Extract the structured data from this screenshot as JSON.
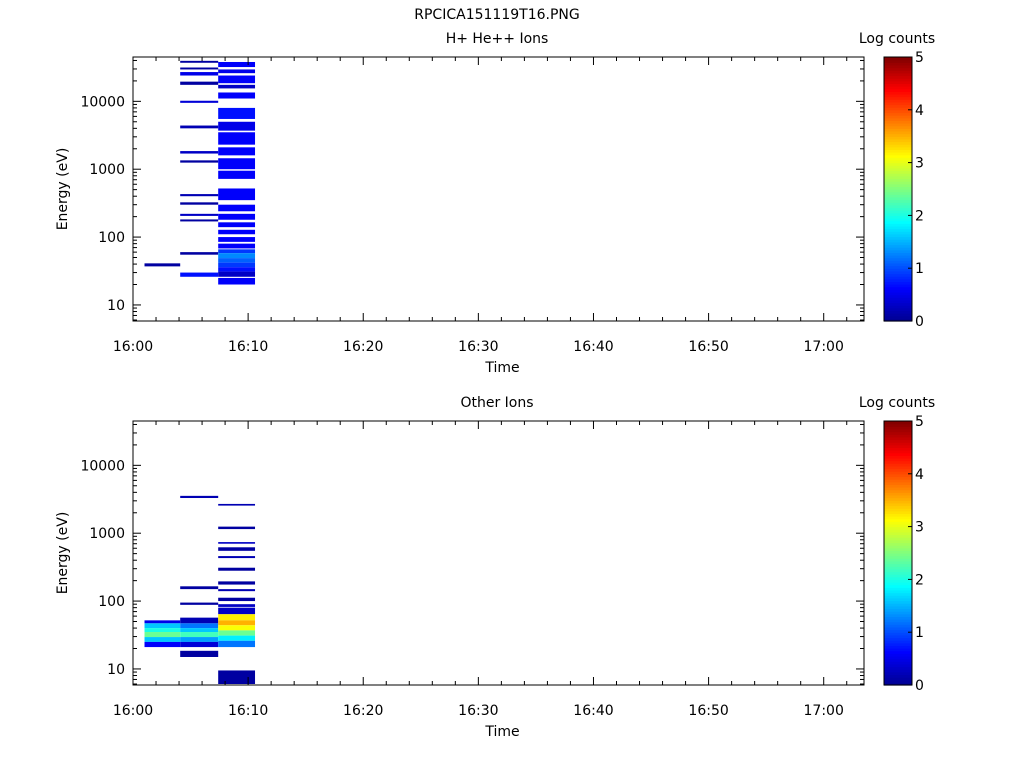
{
  "figure": {
    "title": "RPCICA151119T16.PNG"
  },
  "colormap": [
    "#00008f",
    "#0000ff",
    "#007fff",
    "#00ffff",
    "#7fff7f",
    "#ffff00",
    "#ff7f00",
    "#ff0000",
    "#7f0000"
  ],
  "chart_data": [
    {
      "type": "heatmap",
      "title": "H+ He++ Ions",
      "xlabel": "Time",
      "ylabel": "Energy (eV)",
      "x_ticks": [
        "16:00",
        "16:10",
        "16:20",
        "16:30",
        "16:40",
        "16:50",
        "17:00"
      ],
      "x_range_min": [
        0,
        63.5
      ],
      "y_scale": "log",
      "y_ticks": [
        "10",
        "100",
        "1000",
        "10000"
      ],
      "y_range": [
        5.8,
        45000
      ],
      "colorbar": {
        "label": "Log counts",
        "range": [
          0,
          5
        ],
        "ticks": [
          "0",
          "1",
          "2",
          "3",
          "4",
          "5"
        ]
      },
      "cells": [
        {
          "t": [
            1.0,
            4.1
          ],
          "e": [
            37,
            41
          ],
          "v": 0.1
        },
        {
          "t": [
            4.1,
            7.4
          ],
          "e": [
            37000,
            39500
          ],
          "v": 0.1
        },
        {
          "t": [
            4.1,
            7.4
          ],
          "e": [
            29500,
            31500
          ],
          "v": 0.1
        },
        {
          "t": [
            4.1,
            7.4
          ],
          "e": [
            24000,
            27000
          ],
          "v": 0.5
        },
        {
          "t": [
            4.1,
            7.4
          ],
          "e": [
            17500,
            19500
          ],
          "v": 0.1
        },
        {
          "t": [
            4.1,
            7.4
          ],
          "e": [
            9500,
            10200
          ],
          "v": 0.4
        },
        {
          "t": [
            4.1,
            7.4
          ],
          "e": [
            4000,
            4400
          ],
          "v": 0.2
        },
        {
          "t": [
            4.1,
            7.4
          ],
          "e": [
            1700,
            1850
          ],
          "v": 0.3
        },
        {
          "t": [
            4.1,
            7.4
          ],
          "e": [
            1250,
            1350
          ],
          "v": 0.1
        },
        {
          "t": [
            4.1,
            7.4
          ],
          "e": [
            400,
            430
          ],
          "v": 0.2
        },
        {
          "t": [
            4.1,
            7.4
          ],
          "e": [
            300,
            325
          ],
          "v": 0.1
        },
        {
          "t": [
            4.1,
            7.4
          ],
          "e": [
            205,
            220
          ],
          "v": 0.3
        },
        {
          "t": [
            4.1,
            7.4
          ],
          "e": [
            170,
            182
          ],
          "v": 0.1
        },
        {
          "t": [
            4.1,
            7.4
          ],
          "e": [
            55,
            60
          ],
          "v": 0.1
        },
        {
          "t": [
            4.1,
            7.4
          ],
          "e": [
            26,
            30
          ],
          "v": 0.7
        },
        {
          "t": [
            7.4,
            10.6
          ],
          "e": [
            32000,
            38000
          ],
          "v": 0.6
        },
        {
          "t": [
            7.4,
            10.6
          ],
          "e": [
            26000,
            29500
          ],
          "v": 0.5
        },
        {
          "t": [
            7.4,
            10.6
          ],
          "e": [
            18500,
            24000
          ],
          "v": 0.6
        },
        {
          "t": [
            7.4,
            10.6
          ],
          "e": [
            15500,
            17500
          ],
          "v": 0.3
        },
        {
          "t": [
            7.4,
            10.6
          ],
          "e": [
            11000,
            13500
          ],
          "v": 0.6
        },
        {
          "t": [
            7.4,
            10.6
          ],
          "e": [
            5500,
            8000
          ],
          "v": 0.7
        },
        {
          "t": [
            7.4,
            10.6
          ],
          "e": [
            3700,
            5000
          ],
          "v": 0.5
        },
        {
          "t": [
            7.4,
            10.6
          ],
          "e": [
            2300,
            3500
          ],
          "v": 0.6
        },
        {
          "t": [
            7.4,
            10.6
          ],
          "e": [
            1600,
            2100
          ],
          "v": 0.6
        },
        {
          "t": [
            7.4,
            10.6
          ],
          "e": [
            1000,
            1450
          ],
          "v": 0.6
        },
        {
          "t": [
            7.4,
            10.6
          ],
          "e": [
            720,
            950
          ],
          "v": 0.6
        },
        {
          "t": [
            7.4,
            10.6
          ],
          "e": [
            350,
            520
          ],
          "v": 0.6
        },
        {
          "t": [
            7.4,
            10.6
          ],
          "e": [
            240,
            300
          ],
          "v": 0.6
        },
        {
          "t": [
            7.4,
            10.6
          ],
          "e": [
            180,
            220
          ],
          "v": 0.6
        },
        {
          "t": [
            7.4,
            10.6
          ],
          "e": [
            140,
            165
          ],
          "v": 0.6
        },
        {
          "t": [
            7.4,
            10.6
          ],
          "e": [
            110,
            128
          ],
          "v": 0.6
        },
        {
          "t": [
            7.4,
            10.6
          ],
          "e": [
            85,
            100
          ],
          "v": 0.6
        },
        {
          "t": [
            7.4,
            10.6
          ],
          "e": [
            68,
            80
          ],
          "v": 0.6
        },
        {
          "t": [
            7.4,
            10.6
          ],
          "e": [
            58,
            66
          ],
          "v": 0.9
        },
        {
          "t": [
            7.4,
            10.6
          ],
          "e": [
            49,
            58
          ],
          "v": 1.3
        },
        {
          "t": [
            7.4,
            10.6
          ],
          "e": [
            42,
            49
          ],
          "v": 1.1
        },
        {
          "t": [
            7.4,
            10.6
          ],
          "e": [
            36,
            42
          ],
          "v": 0.9
        },
        {
          "t": [
            7.4,
            10.6
          ],
          "e": [
            31,
            36
          ],
          "v": 0.7
        },
        {
          "t": [
            7.4,
            10.6
          ],
          "e": [
            26,
            31
          ],
          "v": 0.3
        },
        {
          "t": [
            7.4,
            10.6
          ],
          "e": [
            20,
            25
          ],
          "v": 0.6
        }
      ]
    },
    {
      "type": "heatmap",
      "title": "Other Ions",
      "xlabel": "Time",
      "ylabel": "Energy (eV)",
      "x_ticks": [
        "16:00",
        "16:10",
        "16:20",
        "16:30",
        "16:40",
        "16:50",
        "17:00"
      ],
      "x_range_min": [
        0,
        63.5
      ],
      "y_scale": "log",
      "y_ticks": [
        "10",
        "100",
        "1000",
        "10000"
      ],
      "y_range": [
        5.8,
        45000
      ],
      "colorbar": {
        "label": "Log counts",
        "range": [
          0,
          5
        ],
        "ticks": [
          "0",
          "1",
          "2",
          "3",
          "4",
          "5"
        ]
      },
      "cells": [
        {
          "t": [
            1.0,
            4.1
          ],
          "e": [
            47,
            52
          ],
          "v": 0.5
        },
        {
          "t": [
            1.0,
            4.1
          ],
          "e": [
            40,
            47
          ],
          "v": 1.6
        },
        {
          "t": [
            1.0,
            4.1
          ],
          "e": [
            35,
            40
          ],
          "v": 2.0
        },
        {
          "t": [
            1.0,
            4.1
          ],
          "e": [
            29.5,
            35
          ],
          "v": 2.4
        },
        {
          "t": [
            1.0,
            4.1
          ],
          "e": [
            25,
            29.5
          ],
          "v": 1.6
        },
        {
          "t": [
            1.0,
            4.1
          ],
          "e": [
            21,
            25
          ],
          "v": 0.6
        },
        {
          "t": [
            4.1,
            7.4
          ],
          "e": [
            3300,
            3550
          ],
          "v": 0.2
        },
        {
          "t": [
            4.1,
            7.4
          ],
          "e": [
            150,
            165
          ],
          "v": 0.1
        },
        {
          "t": [
            4.1,
            7.4
          ],
          "e": [
            88,
            95
          ],
          "v": 0.1
        },
        {
          "t": [
            4.1,
            7.4
          ],
          "e": [
            47,
            57
          ],
          "v": 0.2
        },
        {
          "t": [
            4.1,
            7.4
          ],
          "e": [
            40,
            47
          ],
          "v": 1.2
        },
        {
          "t": [
            4.1,
            7.4
          ],
          "e": [
            35,
            40
          ],
          "v": 1.6
        },
        {
          "t": [
            4.1,
            7.4
          ],
          "e": [
            29.5,
            35
          ],
          "v": 2.2
        },
        {
          "t": [
            4.1,
            7.4
          ],
          "e": [
            25,
            29.5
          ],
          "v": 1.4
        },
        {
          "t": [
            4.1,
            7.4
          ],
          "e": [
            21,
            25
          ],
          "v": 0.4
        },
        {
          "t": [
            4.1,
            7.4
          ],
          "e": [
            15,
            18.5
          ],
          "v": 0.1
        },
        {
          "t": [
            7.4,
            10.6
          ],
          "e": [
            2550,
            2700
          ],
          "v": 0.2
        },
        {
          "t": [
            7.4,
            10.6
          ],
          "e": [
            1150,
            1250
          ],
          "v": 0.1
        },
        {
          "t": [
            7.4,
            10.6
          ],
          "e": [
            700,
            740
          ],
          "v": 0.3
        },
        {
          "t": [
            7.4,
            10.6
          ],
          "e": [
            550,
            620
          ],
          "v": 0.1
        },
        {
          "t": [
            7.4,
            10.6
          ],
          "e": [
            430,
            460
          ],
          "v": 0.2
        },
        {
          "t": [
            7.4,
            10.6
          ],
          "e": [
            280,
            310
          ],
          "v": 0.1
        },
        {
          "t": [
            7.4,
            10.6
          ],
          "e": [
            175,
            195
          ],
          "v": 0.1
        },
        {
          "t": [
            7.4,
            10.6
          ],
          "e": [
            140,
            150
          ],
          "v": 0.2
        },
        {
          "t": [
            7.4,
            10.6
          ],
          "e": [
            100,
            112
          ],
          "v": 0.1
        },
        {
          "t": [
            7.4,
            10.6
          ],
          "e": [
            82,
            90
          ],
          "v": 0.3
        },
        {
          "t": [
            7.4,
            10.6
          ],
          "e": [
            64,
            80
          ],
          "v": 0.3
        },
        {
          "t": [
            7.4,
            10.6
          ],
          "e": [
            52,
            64
          ],
          "v": 3.2
        },
        {
          "t": [
            7.4,
            10.6
          ],
          "e": [
            44,
            52
          ],
          "v": 3.5
        },
        {
          "t": [
            7.4,
            10.6
          ],
          "e": [
            37,
            44
          ],
          "v": 3.1
        },
        {
          "t": [
            7.4,
            10.6
          ],
          "e": [
            31,
            37
          ],
          "v": 2.4
        },
        {
          "t": [
            7.4,
            10.6
          ],
          "e": [
            26,
            31
          ],
          "v": 1.8
        },
        {
          "t": [
            7.4,
            10.6
          ],
          "e": [
            21,
            26
          ],
          "v": 1.2
        },
        {
          "t": [
            7.4,
            10.6
          ],
          "e": [
            6,
            9.5
          ],
          "v": 0.1
        }
      ]
    }
  ]
}
